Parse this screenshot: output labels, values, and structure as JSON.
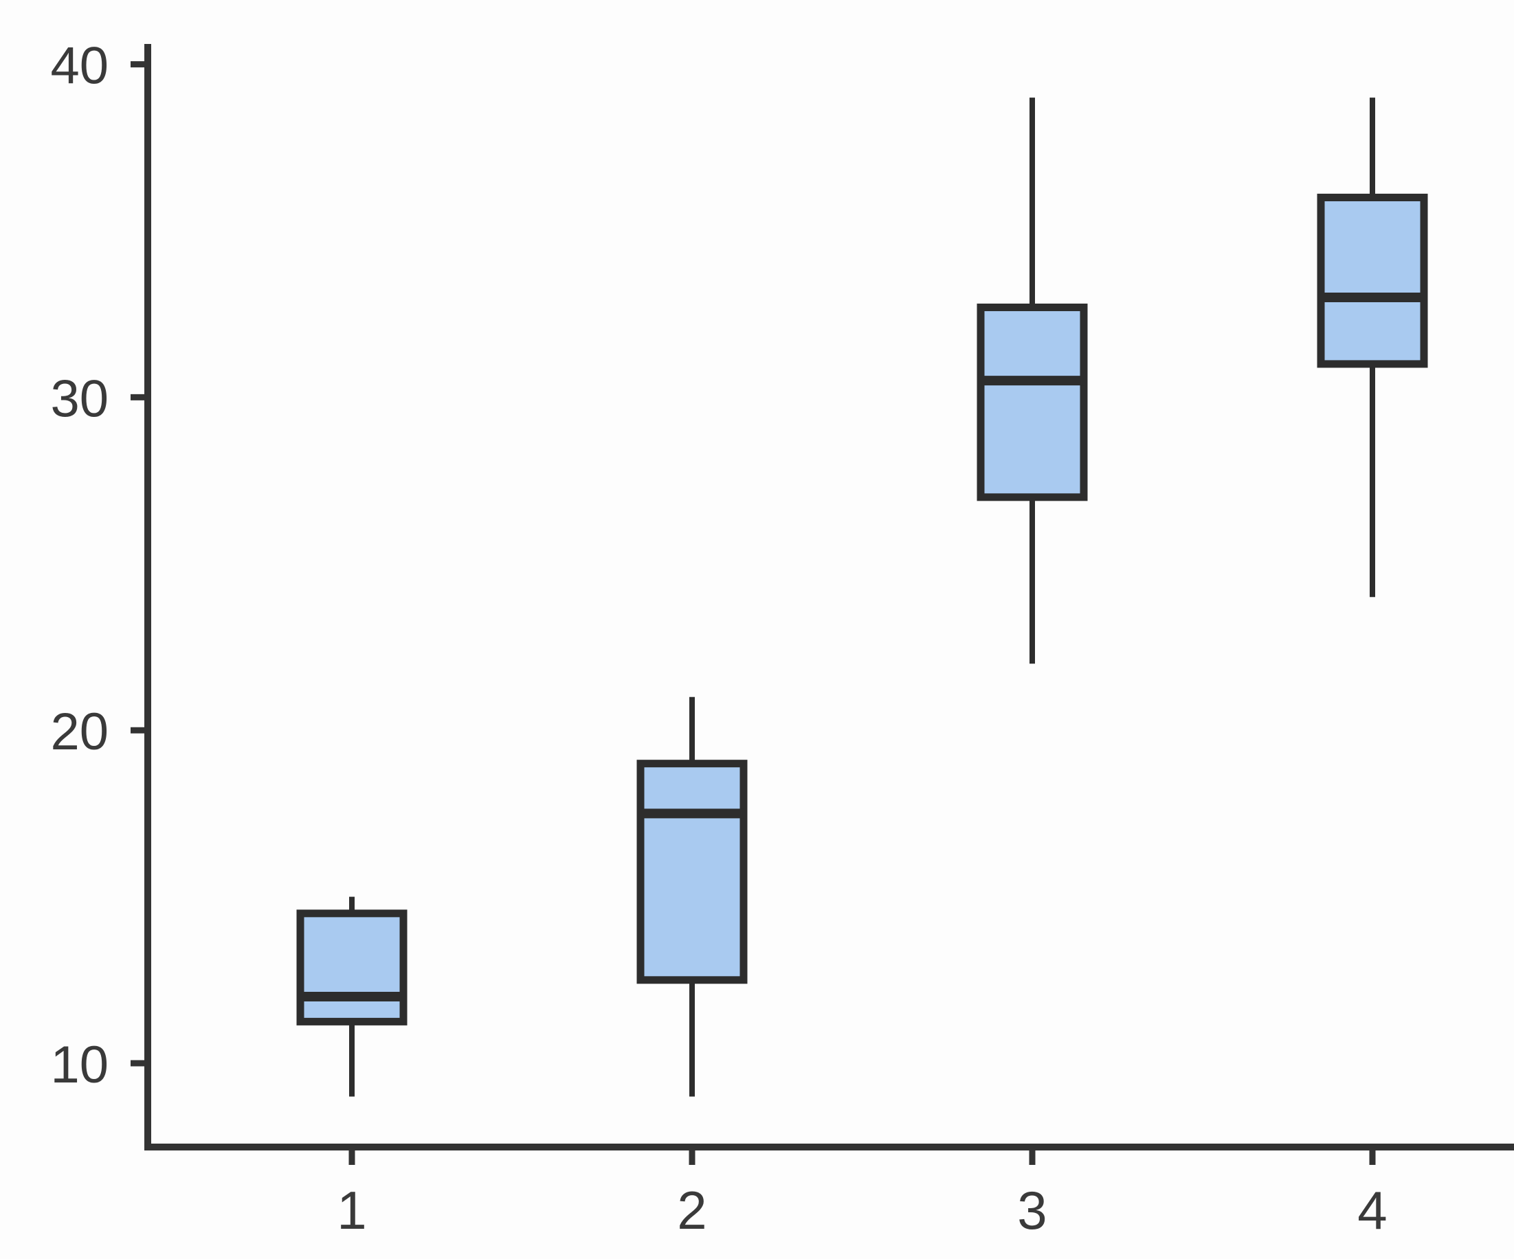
{
  "figure": {
    "background": "#fdfdfd",
    "axis_color": "#333333",
    "text_color": "#3a3a3a"
  },
  "chart_data": {
    "type": "boxplot",
    "title": "",
    "xlabel": "",
    "ylabel": "",
    "categories": [
      "1",
      "2",
      "3",
      "4"
    ],
    "series": [
      {
        "category": "1",
        "min": 9,
        "q1": 11.25,
        "median": 12,
        "q3": 14.5,
        "max": 15
      },
      {
        "category": "2",
        "min": 9,
        "q1": 12.5,
        "median": 17.5,
        "q3": 19,
        "max": 21
      },
      {
        "category": "3",
        "min": 22,
        "q1": 27,
        "median": 30.5,
        "q3": 32.7,
        "max": 39
      },
      {
        "category": "4",
        "min": 24,
        "q1": 31,
        "median": 33,
        "q3": 36,
        "max": 39
      }
    ],
    "y_ticks": [
      10,
      20,
      30,
      40
    ],
    "ylim": [
      7.5,
      40.6
    ],
    "grid": false,
    "legend": null,
    "whisker_caps": false,
    "box_fill": "#a9caf0",
    "box_stroke": "#2d2d2d",
    "median_color": "#2d2d2d",
    "whisker_color": "#2d2d2d"
  }
}
